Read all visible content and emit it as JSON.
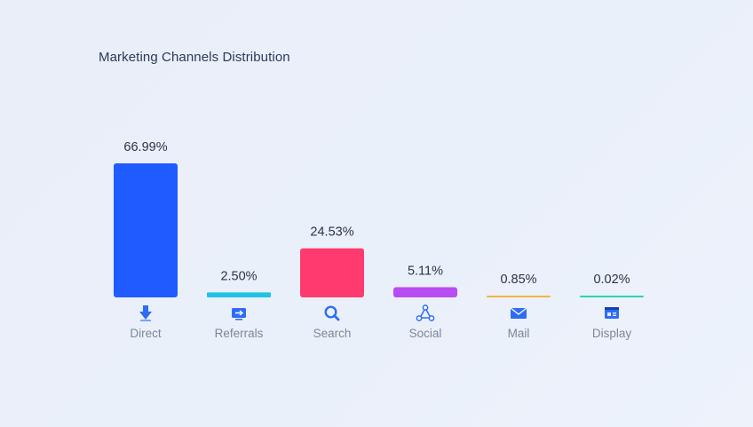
{
  "chart_data": {
    "type": "bar",
    "title": "Marketing Channels Distribution",
    "categories": [
      "Direct",
      "Referrals",
      "Search",
      "Social",
      "Mail",
      "Display"
    ],
    "values": [
      66.99,
      2.5,
      24.53,
      5.11,
      0.85,
      0.02
    ],
    "value_labels": [
      "66.99%",
      "2.50%",
      "24.53%",
      "5.11%",
      "0.85%",
      "0.02%"
    ],
    "unit": "%",
    "colors": [
      "#1f5bff",
      "#1ec3e6",
      "#ff3a6e",
      "#b84cf2",
      "#f5b53c",
      "#2bd4b0"
    ],
    "icons": [
      "download-arrow-icon",
      "monitor-arrow-icon",
      "magnifier-icon",
      "share-network-icon",
      "envelope-icon",
      "browser-window-icon"
    ],
    "ylim": [
      0,
      67
    ],
    "grid": false,
    "legend": "none"
  }
}
